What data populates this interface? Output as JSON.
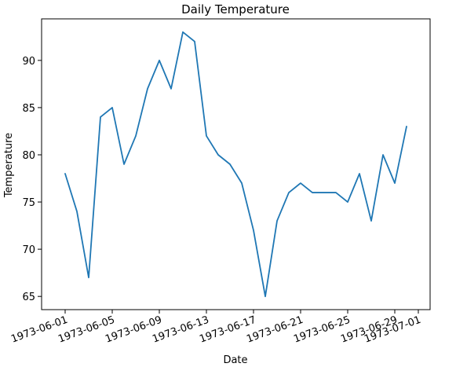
{
  "chart_data": {
    "type": "line",
    "title": "Daily Temperature",
    "xlabel": "Date",
    "ylabel": "Temperature",
    "x_type": "date",
    "xlim": [
      "1973-05-30",
      "1973-07-02"
    ],
    "ylim": [
      63.6,
      94.4
    ],
    "x_ticks": [
      "1973-06-01",
      "1973-06-05",
      "1973-06-09",
      "1973-06-13",
      "1973-06-17",
      "1973-06-21",
      "1973-06-25",
      "1973-06-29",
      "1973-07-01"
    ],
    "y_ticks": [
      65,
      70,
      75,
      80,
      85,
      90
    ],
    "grid": false,
    "legend": "none",
    "series": [
      {
        "color": "#1f77b4",
        "x": [
          "1973-06-01",
          "1973-06-02",
          "1973-06-03",
          "1973-06-04",
          "1973-06-05",
          "1973-06-06",
          "1973-06-07",
          "1973-06-08",
          "1973-06-09",
          "1973-06-10",
          "1973-06-11",
          "1973-06-12",
          "1973-06-13",
          "1973-06-14",
          "1973-06-15",
          "1973-06-16",
          "1973-06-17",
          "1973-06-18",
          "1973-06-19",
          "1973-06-20",
          "1973-06-21",
          "1973-06-22",
          "1973-06-23",
          "1973-06-24",
          "1973-06-25",
          "1973-06-26",
          "1973-06-27",
          "1973-06-28",
          "1973-06-29",
          "1973-06-30"
        ],
        "values": [
          78,
          74,
          67,
          84,
          85,
          79,
          82,
          87,
          90,
          87,
          93,
          92,
          82,
          80,
          79,
          77,
          72,
          65,
          73,
          76,
          77,
          76,
          76,
          76,
          75,
          78,
          73,
          80,
          77,
          83
        ]
      }
    ]
  }
}
